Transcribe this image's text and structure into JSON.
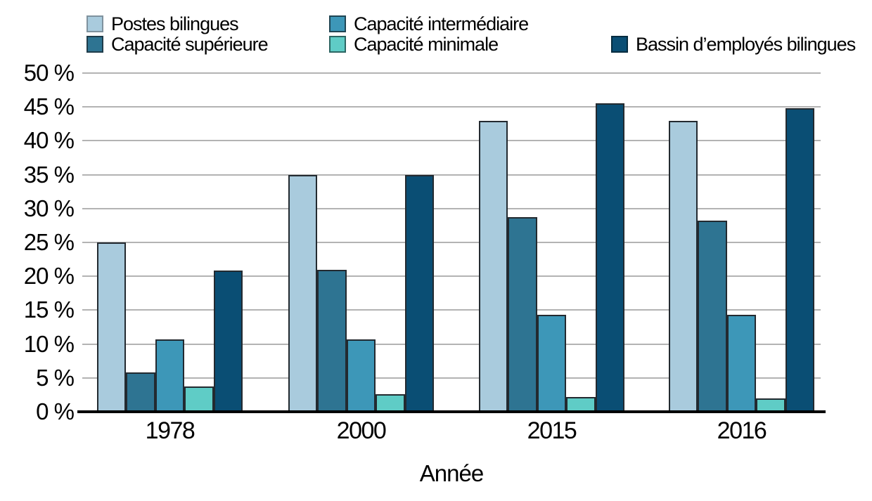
{
  "chart_data": {
    "type": "bar",
    "title": "",
    "xlabel": "Année",
    "ylabel": "",
    "y_unit": "%",
    "ylim": [
      0,
      50
    ],
    "y_tick_step": 5,
    "grid": true,
    "legend_position": "top",
    "categories": [
      "1978",
      "2000",
      "2015",
      "2016"
    ],
    "series": [
      {
        "name": "Postes bilingues",
        "color": "#a9cbdd",
        "swatch_border": "#7f929e",
        "values": [
          25.0,
          35.0,
          42.9,
          42.9
        ]
      },
      {
        "name": "Capacité supérieure",
        "color": "#2e7492",
        "swatch_border": "#1f3c4a",
        "values": [
          5.8,
          21.0,
          28.7,
          28.2
        ]
      },
      {
        "name": "Capacité intermédiaire",
        "color": "#3d97b8",
        "swatch_border": "#1f4554",
        "values": [
          10.7,
          10.7,
          14.3,
          14.3
        ]
      },
      {
        "name": "Capacité minimale",
        "color": "#5fccc6",
        "swatch_border": "#2c6663",
        "values": [
          3.7,
          2.6,
          2.2,
          2.0
        ]
      },
      {
        "name": "Bassin d’employés bilingues",
        "color": "#0a4e74",
        "swatch_border": "#052c40",
        "values": [
          20.8,
          35.0,
          45.5,
          44.8
        ]
      }
    ],
    "legend_columns": [
      [
        "Postes bilingues",
        "Capacité supérieure"
      ],
      [
        "Capacité intermédiaire",
        "Capacité minimale"
      ],
      [
        "",
        "Bassin d’employés bilingues"
      ]
    ],
    "y_tick_labels": [
      "0 %",
      "5 %",
      "10 %",
      "15 %",
      "20 %",
      "25 %",
      "30 %",
      "35 %",
      "40 %",
      "45 %",
      "50 %"
    ]
  },
  "style": {
    "background": "#ffffff",
    "gridline_color": "#b3b3b3",
    "axis_line_color": "#000000",
    "bar_outline_color": "#232a30",
    "text_color": "#000000"
  }
}
